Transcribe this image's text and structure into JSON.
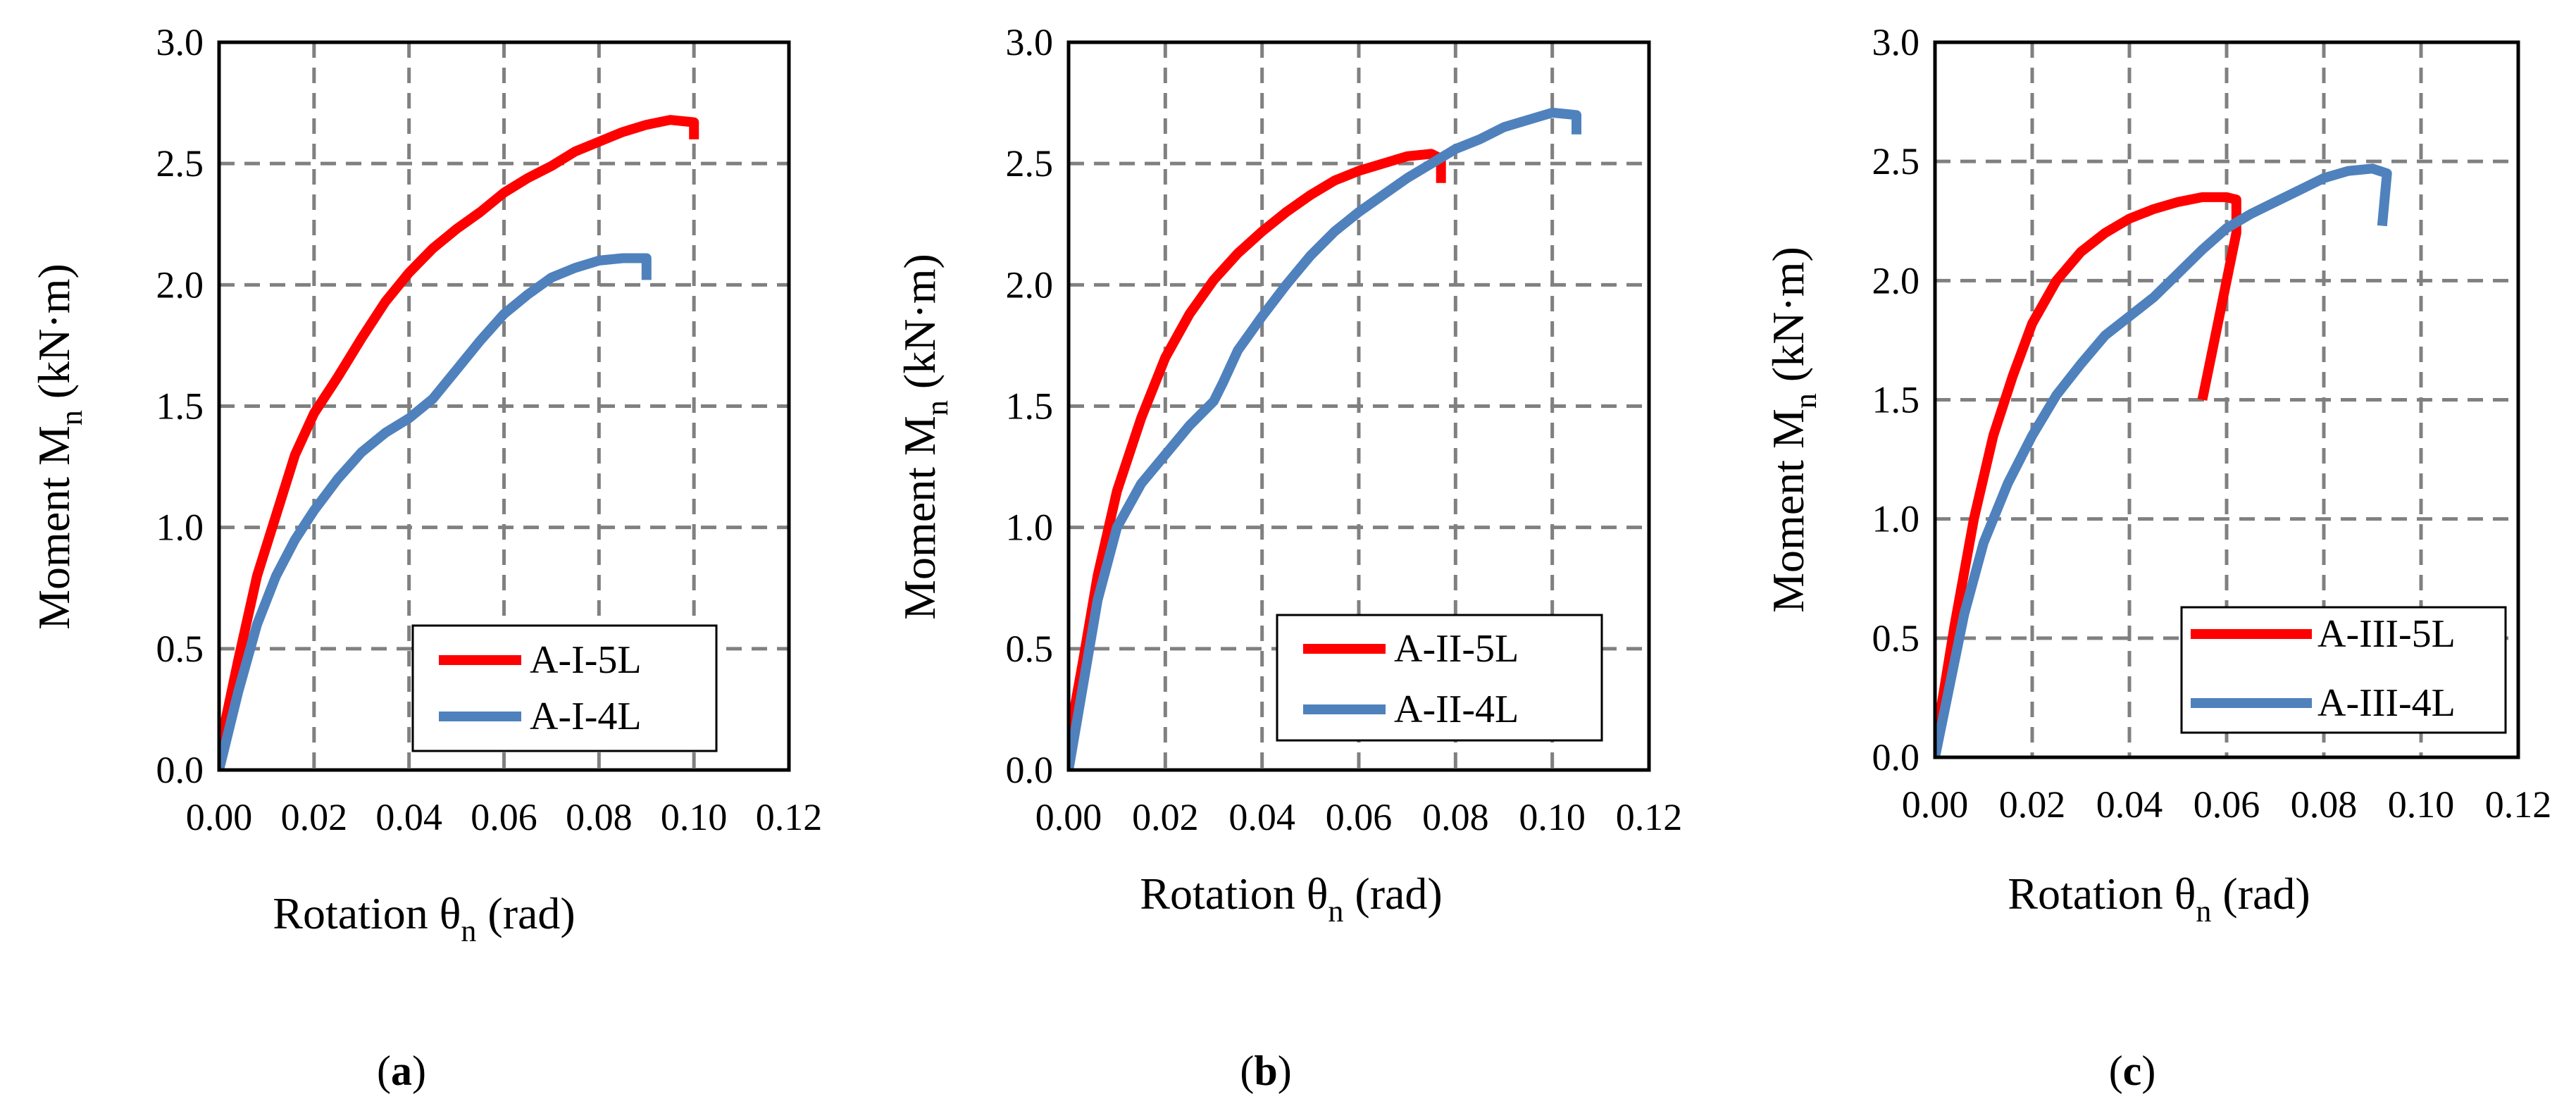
{
  "colors": {
    "red": "#ff0000",
    "blue": "#4f81bd",
    "grid": "#808080",
    "axis": "#000000"
  },
  "chart_data": [
    {
      "type": "line",
      "panel": "a",
      "caption": {
        "open": "(",
        "letter": "a",
        "close": ")"
      },
      "xlabel": {
        "pre": "Rotation θ",
        "sub": "n",
        "post": " (rad)"
      },
      "ylabel": {
        "pre": "Moment  M",
        "sub": "n",
        "post": " (kN·m)"
      },
      "xlim": [
        0,
        0.12
      ],
      "ylim": [
        0,
        3.0
      ],
      "xticks": [
        "0.00",
        "0.02",
        "0.04",
        "0.06",
        "0.08",
        "0.10",
        "0.12"
      ],
      "yticks": [
        "0.0",
        "0.5",
        "1.0",
        "1.5",
        "2.0",
        "2.5",
        "3.0"
      ],
      "legend_position": "bottom-right",
      "series": [
        {
          "name": "A-I-5L",
          "color": "#ff0000",
          "x": [
            0,
            0.004,
            0.008,
            0.012,
            0.016,
            0.02,
            0.025,
            0.03,
            0.035,
            0.04,
            0.045,
            0.05,
            0.055,
            0.06,
            0.065,
            0.07,
            0.075,
            0.08,
            0.085,
            0.09,
            0.095,
            0.1,
            0.1
          ],
          "y": [
            0.08,
            0.45,
            0.8,
            1.05,
            1.3,
            1.47,
            1.62,
            1.78,
            1.93,
            2.05,
            2.15,
            2.23,
            2.3,
            2.38,
            2.44,
            2.49,
            2.55,
            2.59,
            2.63,
            2.66,
            2.68,
            2.67,
            2.6
          ]
        },
        {
          "name": "A-I-4L",
          "color": "#4f81bd",
          "x": [
            0,
            0.004,
            0.008,
            0.012,
            0.016,
            0.02,
            0.025,
            0.03,
            0.035,
            0.04,
            0.045,
            0.05,
            0.055,
            0.06,
            0.065,
            0.07,
            0.075,
            0.08,
            0.085,
            0.09,
            0.09
          ],
          "y": [
            0,
            0.32,
            0.6,
            0.8,
            0.95,
            1.07,
            1.2,
            1.31,
            1.39,
            1.45,
            1.53,
            1.65,
            1.77,
            1.88,
            1.96,
            2.03,
            2.07,
            2.1,
            2.11,
            2.11,
            2.02
          ]
        }
      ]
    },
    {
      "type": "line",
      "panel": "b",
      "caption": {
        "open": "(",
        "letter": "b",
        "close": ")"
      },
      "xlabel": {
        "pre": "Rotation θ",
        "sub": "n",
        "post": " (rad)"
      },
      "ylabel": {
        "pre": "Moment M",
        "sub": "n",
        "post": "  (kN·m)"
      },
      "xlim": [
        0,
        0.12
      ],
      "ylim": [
        0,
        3.0
      ],
      "xticks": [
        "0.00",
        "0.02",
        "0.04",
        "0.06",
        "0.08",
        "0.10",
        "0.12"
      ],
      "yticks": [
        "0.0",
        "0.5",
        "1.0",
        "1.5",
        "2.0",
        "2.5",
        "3.0"
      ],
      "legend_position": "bottom-right",
      "series": [
        {
          "name": "A-II-5L",
          "color": "#ff0000",
          "x": [
            0,
            0.003,
            0.006,
            0.01,
            0.015,
            0.02,
            0.025,
            0.03,
            0.035,
            0.04,
            0.045,
            0.05,
            0.055,
            0.06,
            0.065,
            0.07,
            0.075,
            0.077,
            0.077
          ],
          "y": [
            0.12,
            0.45,
            0.8,
            1.15,
            1.45,
            1.7,
            1.88,
            2.02,
            2.13,
            2.22,
            2.3,
            2.37,
            2.43,
            2.47,
            2.5,
            2.53,
            2.54,
            2.52,
            2.42
          ]
        },
        {
          "name": "A-II-4L",
          "color": "#4f81bd",
          "x": [
            0,
            0.003,
            0.006,
            0.01,
            0.015,
            0.02,
            0.025,
            0.03,
            0.032,
            0.035,
            0.04,
            0.045,
            0.05,
            0.055,
            0.06,
            0.065,
            0.07,
            0.075,
            0.08,
            0.085,
            0.09,
            0.095,
            0.1,
            0.105,
            0.105
          ],
          "y": [
            0,
            0.35,
            0.7,
            1.0,
            1.18,
            1.3,
            1.42,
            1.52,
            1.6,
            1.73,
            1.87,
            2.0,
            2.12,
            2.22,
            2.3,
            2.37,
            2.44,
            2.5,
            2.56,
            2.6,
            2.65,
            2.68,
            2.71,
            2.7,
            2.62
          ]
        }
      ]
    },
    {
      "type": "line",
      "panel": "c",
      "caption": {
        "open": "(",
        "letter": "c",
        "close": ")"
      },
      "xlabel": {
        "pre": "Rotation θ",
        "sub": "n",
        "post": " (rad)"
      },
      "ylabel": {
        "pre": "Moment M",
        "sub": "n",
        "post": " (kN·m)"
      },
      "xlim": [
        0,
        0.12
      ],
      "ylim": [
        0,
        3.0
      ],
      "xticks": [
        "0.00",
        "0.02",
        "0.04",
        "0.06",
        "0.08",
        "0.10",
        "0.12"
      ],
      "yticks": [
        "0.0",
        "0.5",
        "1.0",
        "1.5",
        "2.0",
        "2.5",
        "3.0"
      ],
      "legend_position": "bottom-right",
      "series": [
        {
          "name": "A-III-5L",
          "color": "#ff0000",
          "x": [
            0,
            0.004,
            0.008,
            0.012,
            0.016,
            0.02,
            0.025,
            0.03,
            0.035,
            0.04,
            0.045,
            0.05,
            0.055,
            0.06,
            0.062,
            0.062,
            0.055
          ],
          "y": [
            0.05,
            0.55,
            1.0,
            1.35,
            1.6,
            1.82,
            2.0,
            2.12,
            2.2,
            2.26,
            2.3,
            2.33,
            2.35,
            2.35,
            2.34,
            2.2,
            1.5
          ]
        },
        {
          "name": "A-III-4L",
          "color": "#4f81bd",
          "x": [
            0,
            0.003,
            0.006,
            0.01,
            0.015,
            0.02,
            0.025,
            0.03,
            0.035,
            0.04,
            0.045,
            0.05,
            0.055,
            0.06,
            0.065,
            0.07,
            0.075,
            0.08,
            0.085,
            0.09,
            0.093,
            0.092
          ],
          "y": [
            0,
            0.3,
            0.6,
            0.9,
            1.15,
            1.35,
            1.52,
            1.65,
            1.77,
            1.85,
            1.93,
            2.03,
            2.13,
            2.22,
            2.28,
            2.33,
            2.38,
            2.43,
            2.46,
            2.47,
            2.45,
            2.23
          ]
        }
      ]
    }
  ]
}
